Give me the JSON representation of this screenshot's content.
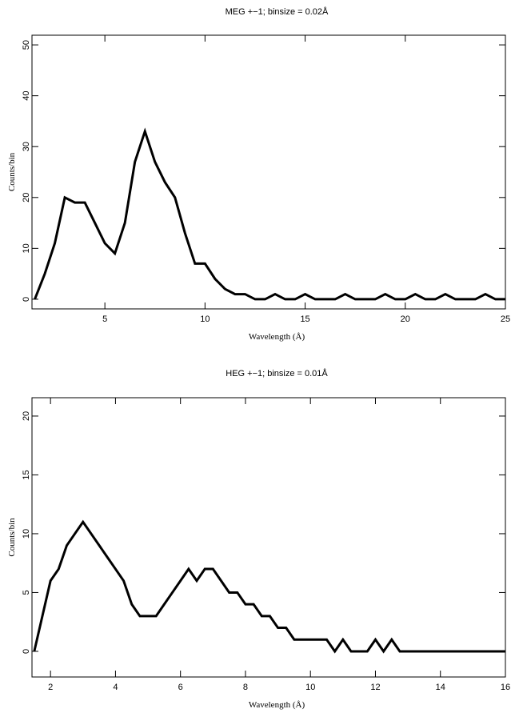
{
  "chart_data": [
    {
      "type": "line",
      "title": "MEG +−1; binsize = 0.02Å",
      "x_label": "Wavelength (Å)",
      "y_label": "Counts/bin",
      "x": [
        1.5,
        2,
        2.5,
        3,
        3.5,
        4,
        4.5,
        5,
        5.5,
        6,
        6.5,
        7,
        7.5,
        8,
        8.5,
        9,
        9.5,
        10,
        10.5,
        11,
        11.5,
        12,
        12.5,
        13,
        13.5,
        14,
        14.5,
        15,
        15.5,
        16,
        16.5,
        17,
        17.5,
        18,
        18.5,
        19,
        19.5,
        20,
        20.5,
        21,
        21.5,
        22,
        22.5,
        23,
        23.5,
        24,
        24.5,
        25
      ],
      "series": [
        {
          "color": "#000000",
          "values": [
            0,
            5,
            11,
            20,
            19,
            19,
            15,
            11,
            9,
            15,
            27,
            33,
            27,
            23,
            20,
            13,
            7,
            7,
            4,
            2,
            1,
            1,
            0,
            0,
            1,
            0,
            0,
            1,
            0,
            0,
            0,
            1,
            0,
            0,
            0,
            1,
            0,
            0,
            1,
            0,
            0,
            1,
            0,
            0,
            0,
            1,
            0,
            0
          ]
        }
      ],
      "xlim": [
        1.36,
        25
      ],
      "ylim": [
        -1.9,
        51.9
      ],
      "xticks": [
        5,
        10,
        15,
        20,
        25
      ],
      "yticks": [
        0,
        10,
        20,
        30,
        40,
        50
      ]
    },
    {
      "type": "line",
      "title": "HEG +−1; binsize = 0.01Å",
      "x_label": "Wavelength (Å)",
      "y_label": "Counts/bin",
      "x": [
        1.5,
        1.75,
        2,
        2.25,
        2.5,
        2.75,
        3,
        3.25,
        3.5,
        3.75,
        4,
        4.25,
        4.5,
        4.75,
        5,
        5.25,
        5.5,
        5.75,
        6,
        6.25,
        6.5,
        6.75,
        7,
        7.25,
        7.5,
        7.75,
        8,
        8.25,
        8.5,
        8.75,
        9,
        9.25,
        9.5,
        9.75,
        10,
        10.25,
        10.5,
        10.75,
        11,
        11.25,
        11.5,
        11.75,
        12,
        12.25,
        12.5,
        12.75,
        13,
        13.25,
        13.5,
        13.75,
        14,
        14.25,
        14.5,
        14.75,
        15,
        15.25,
        15.5,
        15.75,
        16
      ],
      "series": [
        {
          "color": "#000000",
          "values": [
            0,
            3,
            6,
            7,
            9,
            10,
            11,
            10,
            9,
            8,
            7,
            6,
            4,
            3,
            3,
            3,
            4,
            5,
            6,
            7,
            6,
            7,
            7,
            6,
            5,
            5,
            4,
            4,
            3,
            3,
            2,
            2,
            1,
            1,
            1,
            1,
            1,
            0,
            1,
            0,
            0,
            0,
            1,
            0,
            1,
            0,
            0,
            0,
            0,
            0,
            0,
            0,
            0,
            0,
            0,
            0,
            0,
            0,
            0
          ]
        }
      ],
      "xlim": [
        1.43,
        16
      ],
      "ylim": [
        -2.18,
        21.56
      ],
      "xticks": [
        2,
        4,
        6,
        8,
        10,
        12,
        14,
        16
      ],
      "yticks": [
        0,
        5,
        10,
        15,
        20
      ]
    }
  ]
}
